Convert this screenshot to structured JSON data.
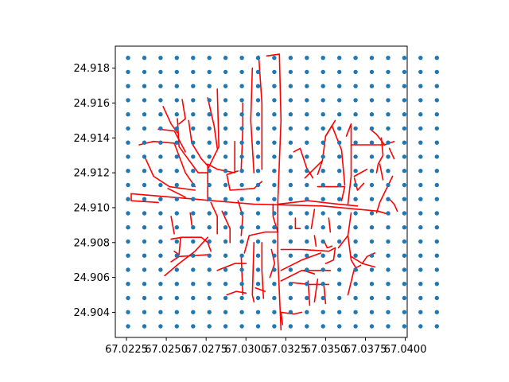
{
  "chart_data": {
    "type": "scatter",
    "title": "",
    "xlabel": "",
    "ylabel": "",
    "xlim": [
      67.0218,
      67.04012
    ],
    "ylim": [
      24.90256,
      24.91926
    ],
    "x_ticks": [
      67.0225,
      67.025,
      67.0275,
      67.03,
      67.0325,
      67.035,
      67.0375,
      67.04
    ],
    "x_tick_labels": [
      "67.0225",
      "67.0250",
      "67.0275",
      "67.0300",
      "67.0325",
      "67.0350",
      "67.0375",
      "67.0400"
    ],
    "y_ticks": [
      24.904,
      24.906,
      24.908,
      24.91,
      24.912,
      24.914,
      24.916,
      24.918
    ],
    "y_tick_labels": [
      "24.904",
      "24.906",
      "24.908",
      "24.910",
      "24.912",
      "24.914",
      "24.916",
      "24.918"
    ],
    "grid": false,
    "series": [
      {
        "kind": "points",
        "color": "#1f77b4",
        "x_start": 67.0226,
        "x_step": 0.00102,
        "x_count": 20,
        "y_start": 24.9032,
        "y_step": 0.00081,
        "y_count": 20
      },
      {
        "kind": "lines",
        "color": "#ff0000",
        "segments": [
          [
            [
              67.0228,
              24.9108
            ],
            [
              67.0305,
              24.9102
            ],
            [
              67.0348,
              24.9101
            ],
            [
              67.0383,
              24.9098
            ],
            [
              67.039,
              24.9096
            ]
          ],
          [
            [
              67.0228,
              24.9108
            ],
            [
              67.0228,
              24.9104
            ],
            [
              67.0245,
              24.9103
            ]
          ],
          [
            [
              67.0313,
              24.9187
            ],
            [
              67.0321,
              24.9188
            ],
            [
              67.0322,
              24.915
            ],
            [
              67.032,
              24.9103
            ],
            [
              67.032,
              24.9072
            ],
            [
              67.0322,
              24.903
            ]
          ],
          [
            [
              67.0308,
              24.9187
            ],
            [
              67.031,
              24.916
            ],
            [
              67.031,
              24.9122
            ]
          ],
          [
            [
              67.0304,
              24.918
            ],
            [
              67.0303,
              24.915
            ],
            [
              67.0305,
              24.912
            ]
          ],
          [
            [
              67.031,
              24.9115
            ],
            [
              67.0305,
              24.9111
            ],
            [
              67.029,
              24.911
            ],
            [
              67.0288,
              24.9119
            ],
            [
              67.0295,
              24.9121
            ]
          ],
          [
            [
              67.0293,
              24.9138
            ],
            [
              67.0293,
              24.912
            ],
            [
              67.0282,
              24.9122
            ],
            [
              67.0276,
              24.9125
            ],
            [
              67.0276,
              24.9104
            ]
          ],
          [
            [
              67.0282,
              24.9168
            ],
            [
              67.0283,
              24.9135
            ],
            [
              67.0276,
              24.9122
            ]
          ],
          [
            [
              67.0298,
              24.916
            ],
            [
              67.0298,
              24.9145
            ],
            [
              67.0297,
              24.9122
            ]
          ],
          [
            [
              67.0276,
              24.9163
            ],
            [
              67.028,
              24.9147
            ],
            [
              67.0282,
              24.9134
            ]
          ],
          [
            [
              67.0264,
              24.915
            ],
            [
              67.0266,
              24.9137
            ],
            [
              67.0272,
              24.9128
            ],
            [
              67.0276,
              24.9124
            ]
          ],
          [
            [
              67.0257,
              24.9151
            ],
            [
              67.0258,
              24.9135
            ],
            [
              67.027,
              24.912
            ],
            [
              67.0276,
              24.912
            ]
          ],
          [
            [
              67.026,
              24.9162
            ],
            [
              67.0262,
              24.9151
            ],
            [
              67.0258,
              24.9148
            ]
          ],
          [
            [
              67.0248,
              24.9158
            ],
            [
              67.0253,
              24.9148
            ],
            [
              67.0257,
              24.9143
            ]
          ],
          [
            [
              67.0233,
              24.9136
            ],
            [
              67.0242,
              24.9138
            ],
            [
              67.0255,
              24.9137
            ],
            [
              67.0262,
              24.912
            ],
            [
              67.0268,
              24.9112
            ]
          ],
          [
            [
              67.0245,
              24.9145
            ],
            [
              67.0255,
              24.9144
            ],
            [
              67.0262,
              24.9132
            ]
          ],
          [
            [
              67.0237,
              24.9128
            ],
            [
              67.0242,
              24.9118
            ],
            [
              67.0252,
              24.9112
            ],
            [
              67.0268,
              24.911
            ]
          ],
          [
            [
              67.0251,
              24.9111
            ],
            [
              67.0262,
              24.9106
            ]
          ],
          [
            [
              67.0253,
              24.9095
            ],
            [
              67.0255,
              24.9085
            ]
          ],
          [
            [
              67.0265,
              24.9097
            ],
            [
              67.0266,
              24.909
            ]
          ],
          [
            [
              67.0253,
              24.9082
            ],
            [
              67.026,
              24.9083
            ],
            [
              67.0272,
              24.9083
            ],
            [
              67.0276,
              24.908
            ],
            [
              67.0278,
              24.9075
            ]
          ],
          [
            [
              67.0259,
              24.9083
            ],
            [
              67.0258,
              24.9073
            ],
            [
              67.0255,
              24.9075
            ]
          ],
          [
            [
              67.0253,
              24.9069
            ],
            [
              67.0258,
              24.9072
            ],
            [
              67.0276,
              24.9073
            ]
          ],
          [
            [
              67.0249,
              24.9061
            ],
            [
              67.0258,
              24.9068
            ],
            [
              67.0268,
              24.9075
            ],
            [
              67.0276,
              24.9083
            ]
          ],
          [
            [
              67.0278,
              24.9103
            ],
            [
              67.0282,
              24.9095
            ],
            [
              67.0282,
              24.9085
            ]
          ],
          [
            [
              67.0285,
              24.9098
            ],
            [
              67.029,
              24.9088
            ],
            [
              67.029,
              24.908
            ]
          ],
          [
            [
              67.0295,
              24.9104
            ],
            [
              67.0298,
              24.9095
            ],
            [
              67.0297,
              24.9084
            ]
          ],
          [
            [
              67.0299,
              24.9074
            ],
            [
              67.0302,
              24.9084
            ],
            [
              67.0312,
              24.9086
            ],
            [
              67.032,
              24.9086
            ],
            [
              67.0317,
              24.9095
            ],
            [
              67.0317,
              24.9102
            ]
          ],
          [
            [
              67.0305,
              24.908
            ],
            [
              67.0304,
              24.905
            ],
            [
              67.0305,
              24.9046
            ]
          ],
          [
            [
              67.031,
              24.908
            ],
            [
              67.031,
              24.9064
            ],
            [
              67.0311,
              24.9048
            ]
          ],
          [
            [
              67.0297,
              24.9073
            ],
            [
              67.0298,
              24.905
            ]
          ],
          [
            [
              67.0282,
              24.9064
            ],
            [
              67.0293,
              24.9068
            ],
            [
              67.03,
              24.9068
            ]
          ],
          [
            [
              67.0288,
              24.905
            ],
            [
              67.0294,
              24.9052
            ],
            [
              67.03,
              24.9051
            ]
          ],
          [
            [
              67.0306,
              24.9054
            ],
            [
              67.0312,
              24.9052
            ]
          ],
          [
            [
              67.0316,
              24.9076
            ],
            [
              67.0318,
              24.9068
            ],
            [
              67.0315,
              24.906
            ]
          ],
          [
            [
              67.0322,
              24.9076
            ],
            [
              67.0335,
              24.9076
            ],
            [
              67.0352,
              24.9075
            ],
            [
              67.0356,
              24.9077
            ]
          ],
          [
            [
              67.0356,
              24.9077
            ],
            [
              67.0355,
              24.907
            ],
            [
              67.035,
              24.9068
            ]
          ],
          [
            [
              67.0358,
              24.9077
            ],
            [
              67.0364,
              24.9084
            ],
            [
              67.0366,
              24.9097
            ]
          ],
          [
            [
              67.0364,
              24.9084
            ],
            [
              67.0366,
              24.907
            ],
            [
              67.037,
              24.9064
            ]
          ],
          [
            [
              67.0366,
              24.9072
            ],
            [
              67.0373,
              24.9068
            ],
            [
              67.0381,
              24.9066
            ]
          ],
          [
            [
              67.0373,
              24.9068
            ],
            [
              67.0376,
              24.9072
            ],
            [
              67.0381,
              24.9074
            ]
          ],
          [
            [
              67.0372,
              24.9067
            ],
            [
              67.0368,
              24.9065
            ],
            [
              67.0364,
              24.905
            ]
          ],
          [
            [
              67.0322,
              24.9064
            ],
            [
              67.0335,
              24.907
            ],
            [
              67.0347,
              24.9074
            ]
          ],
          [
            [
              67.0322,
              24.9058
            ],
            [
              67.0335,
              24.9064
            ],
            [
              67.0353,
              24.9064
            ]
          ],
          [
            [
              67.0336,
              24.9064
            ],
            [
              67.0343,
              24.9062
            ]
          ],
          [
            [
              67.0329,
              24.9057
            ],
            [
              67.034,
              24.9056
            ],
            [
              67.0352,
              24.9056
            ]
          ],
          [
            [
              67.0339,
              24.9058
            ],
            [
              67.034,
              24.9044
            ]
          ],
          [
            [
              67.0345,
              24.9059
            ],
            [
              67.0343,
              24.9046
            ]
          ],
          [
            [
              67.0349,
              24.9055
            ],
            [
              67.035,
              24.9045
            ]
          ],
          [
            [
              67.0331,
              24.9094
            ],
            [
              67.0331,
              24.9088
            ],
            [
              67.0334,
              24.9088
            ]
          ],
          [
            [
              67.0341,
              24.9088
            ],
            [
              67.0343,
              24.9099
            ]
          ],
          [
            [
              67.0343,
              24.9084
            ],
            [
              67.0344,
              24.9078
            ]
          ],
          [
            [
              67.0352,
              24.9094
            ],
            [
              67.0353,
              24.9086
            ]
          ],
          [
            [
              67.0349,
              24.9081
            ],
            [
              67.0351,
              24.9077
            ],
            [
              67.0354,
              24.9078
            ]
          ],
          [
            [
              67.0322,
              24.904
            ],
            [
              67.033,
              24.9039
            ],
            [
              67.0335,
              24.904
            ]
          ],
          [
            [
              67.0322,
              24.904
            ],
            [
              67.0323,
              24.9033
            ]
          ],
          [
            [
              67.032,
              24.9102
            ],
            [
              67.0339,
              24.9104
            ],
            [
              67.0358,
              24.9102
            ],
            [
              67.037,
              24.9101
            ]
          ],
          [
            [
              67.0345,
              24.9112
            ],
            [
              67.0352,
              24.9112
            ],
            [
              67.0362,
              24.9112
            ],
            [
              67.036,
              24.9104
            ]
          ],
          [
            [
              67.0345,
              24.9119
            ],
            [
              67.0348,
              24.9127
            ],
            [
              67.035,
              24.9141
            ],
            [
              67.0356,
              24.915
            ]
          ],
          [
            [
              67.035,
              24.9141
            ],
            [
              67.0354,
              24.9147
            ],
            [
              67.036,
              24.9133
            ],
            [
              67.0362,
              24.9113
            ]
          ],
          [
            [
              67.0337,
              24.9117
            ],
            [
              67.0348,
              24.9127
            ]
          ],
          [
            [
              67.033,
              24.9132
            ],
            [
              67.0334,
              24.9134
            ],
            [
              67.0338,
              24.9123
            ],
            [
              67.0342,
              24.9117
            ]
          ],
          [
            [
              67.0363,
              24.9141
            ],
            [
              67.0366,
              24.9148
            ],
            [
              67.0366,
              24.9118
            ],
            [
              67.0364,
              24.9102
            ]
          ],
          [
            [
              67.0366,
              24.9136
            ],
            [
              67.0378,
              24.9136
            ],
            [
              67.0387,
              24.9136
            ],
            [
              67.0393,
              24.9138
            ]
          ],
          [
            [
              67.0368,
              24.9117
            ],
            [
              67.037,
              24.911
            ],
            [
              67.0374,
              24.9114
            ]
          ],
          [
            [
              67.0368,
              24.9118
            ],
            [
              67.0376,
              24.9122
            ]
          ],
          [
            [
              67.0378,
              24.9145
            ],
            [
              67.0382,
              24.9142
            ],
            [
              67.0387,
              24.9136
            ]
          ],
          [
            [
              67.0385,
              24.914
            ],
            [
              67.0386,
              24.913
            ],
            [
              67.0383,
              24.9125
            ],
            [
              67.0382,
              24.912
            ]
          ],
          [
            [
              67.0384,
              24.9125
            ],
            [
              67.0386,
              24.9116
            ]
          ],
          [
            [
              67.0392,
              24.9118
            ],
            [
              67.0384,
              24.9103
            ],
            [
              67.0382,
              24.9097
            ]
          ],
          [
            [
              67.039,
              24.9105
            ],
            [
              67.0393,
              24.9102
            ],
            [
              67.0395,
              24.9098
            ]
          ],
          [
            [
              67.039,
              24.9134
            ],
            [
              67.0393,
              24.9128
            ]
          ]
        ]
      }
    ]
  }
}
